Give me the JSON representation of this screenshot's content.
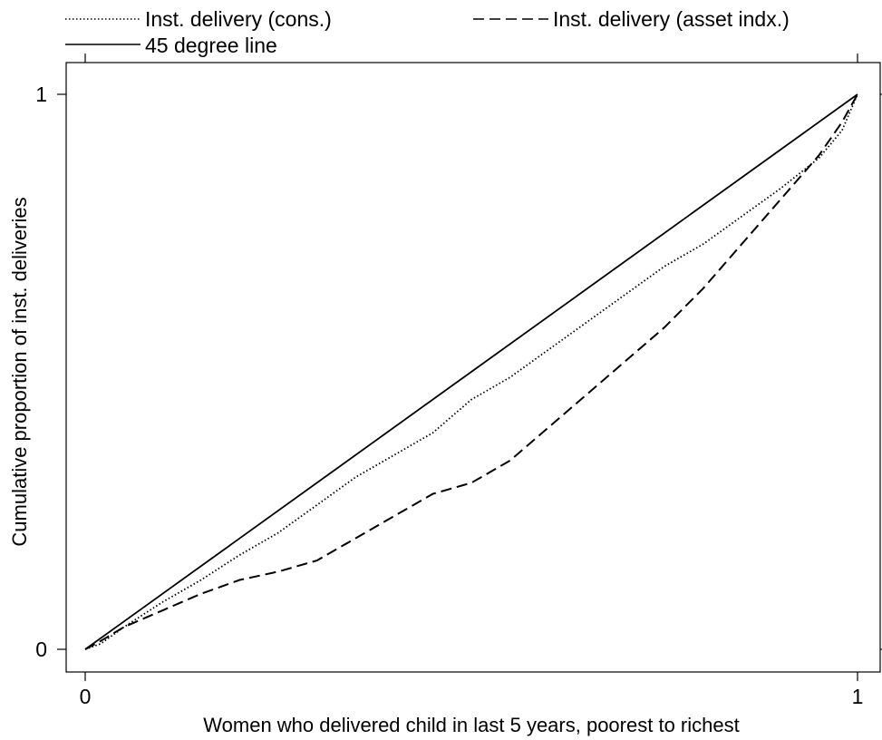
{
  "chart_data": {
    "type": "line",
    "title": "",
    "xlabel": "Women who delivered child in last 5 years, poorest to richest",
    "ylabel": "Cumulative proportion of inst. deliveries",
    "xlim": [
      0,
      1
    ],
    "ylim": [
      0,
      1
    ],
    "x_ticks": [
      "0",
      "1"
    ],
    "y_ticks": [
      "0",
      "1"
    ],
    "grid": false,
    "legend_position": "top",
    "series": [
      {
        "name": "Inst. delivery (cons.)",
        "style": "dotted",
        "x": [
          0,
          0.02,
          0.05,
          0.1,
          0.15,
          0.2,
          0.25,
          0.28,
          0.3,
          0.35,
          0.4,
          0.45,
          0.5,
          0.55,
          0.6,
          0.65,
          0.7,
          0.75,
          0.8,
          0.85,
          0.9,
          0.95,
          0.98,
          1.0
        ],
        "y": [
          0,
          0.01,
          0.04,
          0.085,
          0.125,
          0.17,
          0.21,
          0.24,
          0.26,
          0.31,
          0.35,
          0.39,
          0.45,
          0.49,
          0.54,
          0.59,
          0.64,
          0.69,
          0.73,
          0.78,
          0.83,
          0.885,
          0.935,
          1.0
        ]
      },
      {
        "name": "Inst. delivery (asset indx.)",
        "style": "dashed",
        "x": [
          0,
          0.02,
          0.05,
          0.1,
          0.15,
          0.2,
          0.25,
          0.3,
          0.35,
          0.4,
          0.45,
          0.5,
          0.55,
          0.6,
          0.65,
          0.7,
          0.75,
          0.8,
          0.85,
          0.9,
          0.95,
          0.98,
          1.0
        ],
        "y": [
          0,
          0.015,
          0.04,
          0.07,
          0.1,
          0.125,
          0.14,
          0.16,
          0.2,
          0.24,
          0.28,
          0.3,
          0.34,
          0.4,
          0.46,
          0.52,
          0.58,
          0.65,
          0.73,
          0.81,
          0.89,
          0.95,
          1.0
        ]
      },
      {
        "name": "45 degree line",
        "style": "solid",
        "x": [
          0,
          1
        ],
        "y": [
          0,
          1
        ]
      }
    ]
  }
}
